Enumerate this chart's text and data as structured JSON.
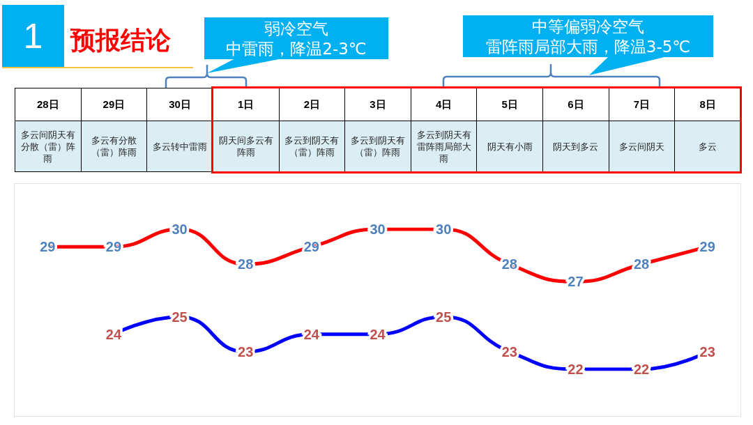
{
  "chart_data": {
    "type": "line",
    "title": "预报结论",
    "categories": [
      "28日",
      "29日",
      "30日",
      "1日",
      "2日",
      "3日",
      "4日",
      "5日",
      "6日",
      "7日",
      "8日"
    ],
    "series": [
      {
        "color": "#ff0000",
        "values": [
          29,
          29,
          30,
          28,
          29,
          30,
          30,
          28,
          27,
          28,
          29
        ]
      },
      {
        "color": "#0000ff",
        "values": [
          null,
          24,
          25,
          23,
          24,
          24,
          25,
          23,
          22,
          22,
          23
        ]
      }
    ],
    "data_labels": true,
    "line_style": "solid",
    "tick_labels": "x",
    "annotations": [
      "1",
      "弱冷空气",
      "中雷雨，降温2-3℃",
      "中等偏弱冷空气",
      "雷阵雨局部大雨，降温3-5℃",
      "多云间阴天有分散（雷）阵雨",
      "多云有分散（雷）阵雨",
      "多云转中雷雨",
      "阴天间多云有阵雨",
      "多云到阴天有（雷）阵雨",
      "多云到阴天有（雷）阵雨",
      "多云到阴天有雷阵雨局部大雨",
      "阴天有小雨",
      "阴天到多云",
      "多云间阴天",
      "多云"
    ]
  }
}
